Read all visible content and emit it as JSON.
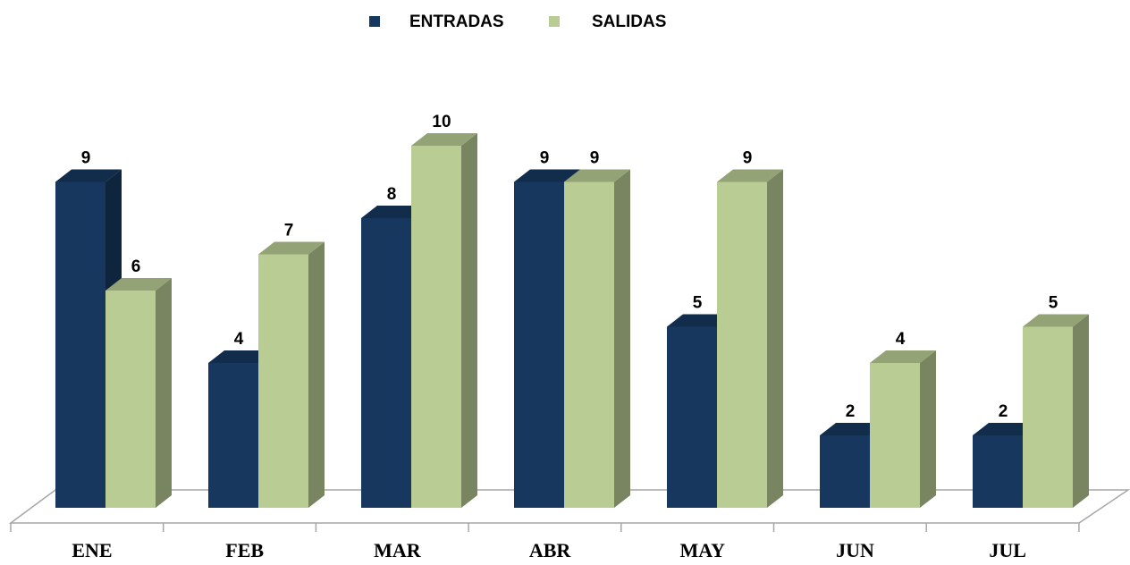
{
  "chart_data": {
    "type": "bar3d",
    "categories": [
      "ENE",
      "FEB",
      "MAR",
      "ABR",
      "MAY",
      "JUN",
      "JUL"
    ],
    "series": [
      {
        "name": "ENTRADAS",
        "color": "#17375e",
        "values": [
          9,
          4,
          8,
          9,
          5,
          2,
          2
        ]
      },
      {
        "name": "SALIDAS",
        "color": "#b8cc94",
        "values": [
          6,
          7,
          10,
          9,
          9,
          4,
          5
        ]
      }
    ],
    "legend": "top"
  }
}
